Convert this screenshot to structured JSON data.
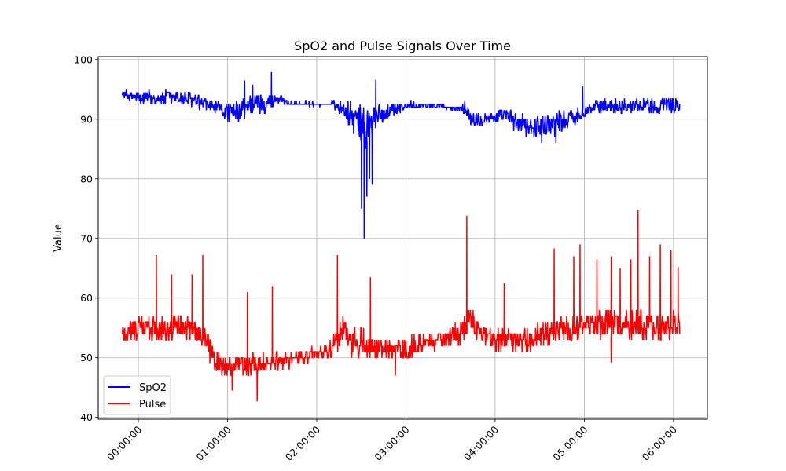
{
  "chart_data": {
    "type": "line",
    "title": "SpO2 and Pulse Signals Over Time",
    "xlabel": "",
    "ylabel": "Value",
    "x_axis": {
      "unit": "hours",
      "ticks": [
        0,
        1,
        2,
        3,
        4,
        5,
        6
      ],
      "tick_labels": [
        "00:00:00",
        "01:00:00",
        "02:00:00",
        "03:00:00",
        "04:00:00",
        "05:00:00",
        "06:00:00"
      ],
      "range": [
        -0.45,
        6.38
      ]
    },
    "y_axis": {
      "ticks": [
        40,
        50,
        60,
        70,
        80,
        90,
        100
      ],
      "tick_labels": [
        "40",
        "50",
        "60",
        "70",
        "80",
        "90",
        "100"
      ],
      "range": [
        39.7,
        100.5
      ]
    },
    "grid": true,
    "legend_position": "bottom-left",
    "series": [
      {
        "name": "SpO2",
        "color": "#0000ff",
        "baseline": [
          [
            -0.18,
            94.3
          ],
          [
            0.0,
            93.5
          ],
          [
            0.2,
            93.5
          ],
          [
            0.4,
            93.6
          ],
          [
            0.6,
            93.3
          ],
          [
            0.7,
            92.5
          ],
          [
            0.8,
            92.3
          ],
          [
            0.95,
            91.5
          ],
          [
            1.05,
            91.0
          ],
          [
            1.15,
            91.5
          ],
          [
            1.25,
            92.5
          ],
          [
            1.4,
            92.5
          ],
          [
            1.55,
            93.5
          ],
          [
            1.7,
            92.6
          ],
          [
            2.0,
            92.5
          ],
          [
            2.2,
            92.5
          ],
          [
            2.35,
            91.0
          ],
          [
            2.45,
            89.5
          ],
          [
            2.55,
            88.5
          ],
          [
            2.65,
            90.0
          ],
          [
            2.8,
            91.5
          ],
          [
            3.0,
            92.3
          ],
          [
            3.2,
            92.3
          ],
          [
            3.4,
            92.3
          ],
          [
            3.5,
            91.8
          ],
          [
            3.65,
            91.8
          ],
          [
            3.75,
            90.5
          ],
          [
            3.9,
            90.2
          ],
          [
            4.1,
            90.5
          ],
          [
            4.3,
            89.0
          ],
          [
            4.5,
            89.0
          ],
          [
            4.7,
            89.5
          ],
          [
            4.9,
            90.5
          ],
          [
            5.1,
            92.0
          ],
          [
            5.3,
            92.3
          ],
          [
            5.5,
            92.3
          ],
          [
            5.7,
            92.5
          ],
          [
            5.9,
            92.2
          ],
          [
            6.07,
            92.5
          ]
        ],
        "noise": [
          [
            -0.18,
            0.5
          ],
          [
            0.0,
            1.2
          ],
          [
            0.3,
            1.5
          ],
          [
            0.7,
            1.3
          ],
          [
            0.9,
            1.2
          ],
          [
            1.0,
            1.8
          ],
          [
            1.2,
            2.2
          ],
          [
            1.4,
            2.0
          ],
          [
            1.55,
            1.0
          ],
          [
            1.7,
            0.3
          ],
          [
            2.15,
            0.3
          ],
          [
            2.3,
            1.8
          ],
          [
            2.45,
            3.0
          ],
          [
            2.6,
            4.0
          ],
          [
            2.7,
            2.5
          ],
          [
            2.85,
            1.2
          ],
          [
            3.0,
            0.8
          ],
          [
            3.2,
            0.4
          ],
          [
            3.5,
            0.3
          ],
          [
            3.62,
            0.5
          ],
          [
            3.7,
            1.8
          ],
          [
            4.0,
            1.0
          ],
          [
            4.2,
            1.8
          ],
          [
            4.5,
            2.0
          ],
          [
            4.7,
            2.3
          ],
          [
            4.85,
            1.5
          ],
          [
            5.0,
            1.0
          ],
          [
            5.3,
            1.2
          ],
          [
            5.6,
            1.2
          ],
          [
            6.07,
            1.5
          ]
        ],
        "spikes": [
          [
            1.19,
            92,
            96.5
          ],
          [
            1.28,
            92,
            95.8
          ],
          [
            1.49,
            92,
            97.9
          ],
          [
            2.5,
            85,
            75.0
          ],
          [
            2.53,
            85,
            70.0
          ],
          [
            2.56,
            86,
            77.0
          ],
          [
            2.59,
            87,
            80.0
          ],
          [
            2.62,
            88,
            79.0
          ],
          [
            2.66,
            90,
            96.6
          ],
          [
            4.52,
            88,
            86.0
          ],
          [
            4.68,
            89,
            86.0
          ],
          [
            4.98,
            92,
            95.5
          ]
        ]
      },
      {
        "name": "Pulse",
        "color": "#ff0000",
        "baseline": [
          [
            -0.18,
            54.0
          ],
          [
            0.0,
            55.0
          ],
          [
            0.2,
            55.0
          ],
          [
            0.4,
            55.0
          ],
          [
            0.6,
            55.0
          ],
          [
            0.75,
            53.0
          ],
          [
            0.85,
            49.5
          ],
          [
            1.0,
            48.5
          ],
          [
            1.2,
            48.5
          ],
          [
            1.4,
            49.0
          ],
          [
            1.6,
            49.5
          ],
          [
            1.8,
            50.0
          ],
          [
            2.0,
            50.5
          ],
          [
            2.15,
            51.0
          ],
          [
            2.3,
            55.0
          ],
          [
            2.4,
            53.0
          ],
          [
            2.6,
            51.5
          ],
          [
            2.8,
            51.5
          ],
          [
            3.0,
            51.5
          ],
          [
            3.2,
            52.5
          ],
          [
            3.4,
            53.0
          ],
          [
            3.6,
            53.5
          ],
          [
            3.7,
            57.0
          ],
          [
            3.85,
            54.5
          ],
          [
            4.0,
            53.0
          ],
          [
            4.3,
            53.0
          ],
          [
            4.5,
            53.5
          ],
          [
            4.7,
            54.5
          ],
          [
            4.9,
            55.0
          ],
          [
            5.1,
            55.5
          ],
          [
            5.3,
            56.0
          ],
          [
            5.5,
            55.5
          ],
          [
            5.7,
            55.0
          ],
          [
            5.9,
            55.0
          ],
          [
            6.07,
            55.5
          ]
        ],
        "noise": [
          [
            -0.18,
            2.0
          ],
          [
            0.5,
            2.5
          ],
          [
            0.85,
            2.0
          ],
          [
            1.2,
            2.0
          ],
          [
            1.5,
            1.5
          ],
          [
            1.8,
            1.2
          ],
          [
            2.1,
            1.5
          ],
          [
            2.4,
            3.0
          ],
          [
            2.7,
            2.0
          ],
          [
            3.0,
            1.8
          ],
          [
            3.4,
            1.5
          ],
          [
            3.7,
            2.5
          ],
          [
            4.0,
            1.8
          ],
          [
            4.4,
            2.2
          ],
          [
            4.8,
            2.5
          ],
          [
            5.2,
            2.5
          ],
          [
            5.6,
            2.5
          ],
          [
            6.07,
            2.5
          ]
        ],
        "spikes": [
          [
            0.2,
            54,
            67.2
          ],
          [
            0.37,
            54,
            64.0
          ],
          [
            0.6,
            54,
            64.0
          ],
          [
            0.72,
            53,
            67.2
          ],
          [
            1.22,
            48,
            61.0
          ],
          [
            1.5,
            49,
            62.0
          ],
          [
            2.23,
            53,
            67.2
          ],
          [
            2.6,
            52,
            63.5
          ],
          [
            3.55,
            53,
            56.0
          ],
          [
            3.68,
            54,
            73.8
          ],
          [
            4.1,
            53,
            62.5
          ],
          [
            4.66,
            54,
            68.3
          ],
          [
            4.88,
            55,
            67.0
          ],
          [
            4.95,
            55,
            69.0
          ],
          [
            5.14,
            55,
            66.5
          ],
          [
            5.3,
            55,
            67.0
          ],
          [
            5.4,
            55,
            65.0
          ],
          [
            5.52,
            56,
            66.5
          ],
          [
            5.6,
            56,
            74.7
          ],
          [
            5.73,
            56,
            67.0
          ],
          [
            5.85,
            56,
            69.0
          ],
          [
            5.97,
            56,
            68.0
          ],
          [
            6.05,
            57,
            65.2
          ],
          [
            5.3,
            53,
            49.2
          ],
          [
            2.88,
            50,
            47.0
          ],
          [
            1.33,
            47,
            42.7
          ],
          [
            1.05,
            47,
            44.5
          ]
        ]
      }
    ]
  }
}
